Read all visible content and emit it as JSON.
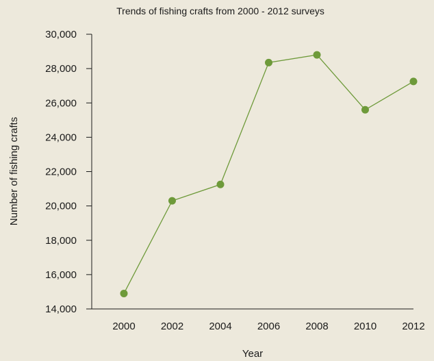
{
  "colors": {
    "background": "#ede9dc",
    "series": "#6e9a3a",
    "axis": "#1a1a1a"
  },
  "chart_data": {
    "type": "line",
    "title": "Trends of fishing crafts from 2000 - 2012 surveys",
    "xlabel": "Year",
    "ylabel": "Number of fishing crafts",
    "categories": [
      "2000",
      "2002",
      "2004",
      "2006",
      "2008",
      "2010",
      "2012"
    ],
    "series": [
      {
        "values": [
          14900,
          20300,
          21250,
          28350,
          28800,
          25600,
          27250
        ]
      }
    ],
    "ylim": [
      14000,
      30000
    ],
    "yticks": [
      "14,000",
      "16,000",
      "18,000",
      "20,000",
      "22,000",
      "24,000",
      "26,000",
      "28,000",
      "30,000"
    ],
    "grid": false,
    "legend": "none"
  }
}
